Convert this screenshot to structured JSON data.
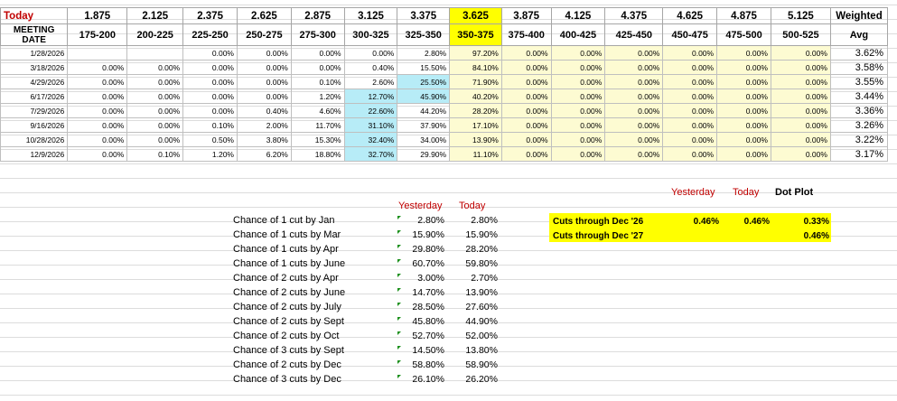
{
  "header": {
    "today_label": "Today",
    "rates": [
      "1.875",
      "2.125",
      "2.375",
      "2.625",
      "2.875",
      "3.125",
      "3.375",
      "3.625",
      "3.875",
      "4.125",
      "4.375",
      "4.625",
      "4.875",
      "5.125"
    ],
    "weighted_label": "Weighted",
    "meeting_label_1": "MEETING",
    "meeting_label_2": "DATE",
    "ranges": [
      "175-200",
      "200-225",
      "225-250",
      "250-275",
      "275-300",
      "300-325",
      "325-350",
      "350-375",
      "375-400",
      "400-425",
      "425-450",
      "450-475",
      "475-500",
      "500-525"
    ],
    "avg_label": "Avg"
  },
  "rows": [
    {
      "date": "1/28/2026",
      "values": [
        "",
        "",
        "0.00%",
        "0.00%",
        "0.00%",
        "0.00%",
        "2.80%",
        "97.20%",
        "0.00%",
        "0.00%",
        "0.00%",
        "0.00%",
        "0.00%",
        "0.00%"
      ],
      "avg": "3.62%"
    },
    {
      "date": "3/18/2026",
      "values": [
        "0.00%",
        "0.00%",
        "0.00%",
        "0.00%",
        "0.00%",
        "0.40%",
        "15.50%",
        "84.10%",
        "0.00%",
        "0.00%",
        "0.00%",
        "0.00%",
        "0.00%",
        "0.00%"
      ],
      "avg": "3.58%"
    },
    {
      "date": "4/29/2026",
      "values": [
        "0.00%",
        "0.00%",
        "0.00%",
        "0.00%",
        "0.10%",
        "2.60%",
        "25.50%",
        "71.90%",
        "0.00%",
        "0.00%",
        "0.00%",
        "0.00%",
        "0.00%",
        "0.00%"
      ],
      "avg": "3.55%"
    },
    {
      "date": "6/17/2026",
      "values": [
        "0.00%",
        "0.00%",
        "0.00%",
        "0.00%",
        "1.20%",
        "12.70%",
        "45.90%",
        "40.20%",
        "0.00%",
        "0.00%",
        "0.00%",
        "0.00%",
        "0.00%",
        "0.00%"
      ],
      "avg": "3.44%"
    },
    {
      "date": "7/29/2026",
      "values": [
        "0.00%",
        "0.00%",
        "0.00%",
        "0.40%",
        "4.60%",
        "22.60%",
        "44.20%",
        "28.20%",
        "0.00%",
        "0.00%",
        "0.00%",
        "0.00%",
        "0.00%",
        "0.00%"
      ],
      "avg": "3.36%"
    },
    {
      "date": "9/16/2026",
      "values": [
        "0.00%",
        "0.00%",
        "0.10%",
        "2.00%",
        "11.70%",
        "31.10%",
        "37.90%",
        "17.10%",
        "0.00%",
        "0.00%",
        "0.00%",
        "0.00%",
        "0.00%",
        "0.00%"
      ],
      "avg": "3.26%"
    },
    {
      "date": "10/28/2026",
      "values": [
        "0.00%",
        "0.00%",
        "0.50%",
        "3.80%",
        "15.30%",
        "32.40%",
        "34.00%",
        "13.90%",
        "0.00%",
        "0.00%",
        "0.00%",
        "0.00%",
        "0.00%",
        "0.00%"
      ],
      "avg": "3.22%"
    },
    {
      "date": "12/9/2026",
      "values": [
        "0.00%",
        "0.10%",
        "1.20%",
        "6.20%",
        "18.80%",
        "32.70%",
        "29.90%",
        "11.10%",
        "0.00%",
        "0.00%",
        "0.00%",
        "0.00%",
        "0.00%",
        "0.00%"
      ],
      "avg": "3.17%"
    }
  ],
  "highlights": {
    "cyan": [
      [
        2,
        6
      ],
      [
        3,
        6
      ],
      [
        4,
        5
      ],
      [
        5,
        5
      ],
      [
        6,
        5
      ],
      [
        7,
        5
      ],
      [
        3,
        5
      ]
    ],
    "note": "row,col pairs of cyan cells"
  },
  "probabilities": {
    "yesterday_label": "Yesterday",
    "today_label": "Today",
    "items": [
      {
        "label": "Chance of 1 cut by Jan",
        "yesterday": "2.80%",
        "today": "2.80%"
      },
      {
        "label": "Chance of 1 cuts by Mar",
        "yesterday": "15.90%",
        "today": "15.90%"
      },
      {
        "label": "Chance of 1 cuts by Apr",
        "yesterday": "29.80%",
        "today": "28.20%"
      },
      {
        "label": "Chance of 1 cuts by June",
        "yesterday": "60.70%",
        "today": "59.80%"
      },
      {
        "label": "Chance of 2 cuts by Apr",
        "yesterday": "3.00%",
        "today": "2.70%"
      },
      {
        "label": "Chance of 2 cuts by June",
        "yesterday": "14.70%",
        "today": "13.90%"
      },
      {
        "label": "Chance of 2 cuts by July",
        "yesterday": "28.50%",
        "today": "27.60%"
      },
      {
        "label": "Chance of 2 cuts by Sept",
        "yesterday": "45.80%",
        "today": "44.90%"
      },
      {
        "label": "Chance of 2 cuts by Oct",
        "yesterday": "52.70%",
        "today": "52.00%"
      },
      {
        "label": "Chance of 3 cuts by Sept",
        "yesterday": "14.50%",
        "today": "13.80%"
      },
      {
        "label": "Chance of 2 cuts by Dec",
        "yesterday": "58.80%",
        "today": "58.90%"
      },
      {
        "label": "Chance of 3 cuts by Dec",
        "yesterday": "26.10%",
        "today": "26.20%"
      }
    ]
  },
  "cuts": {
    "yesterday_label": "Yesterday",
    "today_label": "Today",
    "dotplot_label": "Dot Plot",
    "rows": [
      {
        "label": "Cuts through Dec '26",
        "yesterday": "0.46%",
        "today": "0.46%",
        "dotplot": "0.33%"
      },
      {
        "label": "Cuts through Dec '27",
        "yesterday": "",
        "today": "",
        "dotplot": "0.46%"
      }
    ]
  },
  "colors": {
    "highlight_yellow": "#ffff00",
    "pale_yellow": "#fdfbd2",
    "cyan": "#b7ecf7",
    "red": "#c00000",
    "green": "#1a8f1a"
  }
}
